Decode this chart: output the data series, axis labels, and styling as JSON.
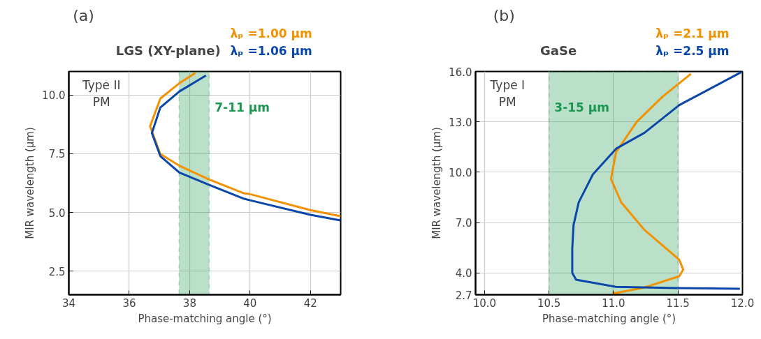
{
  "chart_data": [
    {
      "type": "line",
      "title": "LGS (XY-plane)",
      "xlabel": "Phase-matching angle (°)",
      "ylabel": "MIR wavelength (µm)",
      "xlim": [
        34,
        43
      ],
      "xticks": [
        34,
        36,
        38,
        40,
        42
      ],
      "ylim": [
        1.5,
        11
      ],
      "yticks": [
        2.5,
        {
          "value": 5,
          "label": "5.0"
        },
        7.5,
        {
          "value": 10,
          "label": "10.0"
        }
      ],
      "grid": true,
      "legend": "top right",
      "annotations": [
        "(a)",
        "Type II\nPM"
      ],
      "bands": [
        {
          "axis": "x",
          "from": 37.65,
          "to": 38.65,
          "label": "7-11 µm",
          "color": "#1a9850"
        }
      ],
      "series": [
        {
          "name": "λₚ =1.00 µm",
          "color": "#f39200",
          "x": [
            38.19,
            37.66,
            37.03,
            36.69,
            37.03,
            37.66,
            38.65,
            39.81,
            40.0,
            42.0,
            43.0
          ],
          "values": [
            10.94,
            10.5,
            9.85,
            8.67,
            7.49,
            6.99,
            6.4,
            5.81,
            5.78,
            5.1,
            4.84
          ]
        },
        {
          "name": "λₚ =1.06 µm",
          "color": "#0b47a8",
          "x": [
            38.54,
            37.66,
            37.03,
            36.75,
            37.03,
            37.66,
            38.65,
            39.81,
            40.0,
            42.0,
            43.0
          ],
          "values": [
            10.83,
            10.15,
            9.47,
            8.38,
            7.4,
            6.7,
            6.17,
            5.58,
            5.52,
            4.9,
            4.66
          ]
        }
      ]
    },
    {
      "type": "line",
      "title": "GaSe",
      "xlabel": "Phase-matching angle (°)",
      "ylabel": "MIR wavelength (µm)",
      "xlim": [
        9.93,
        12.0
      ],
      "xticks": [
        {
          "value": 10,
          "label": "10.0"
        },
        10.5,
        {
          "value": 11,
          "label": "11.0"
        },
        11.5,
        {
          "value": 12,
          "label": "12.0"
        }
      ],
      "ylim": [
        2.7,
        16.0
      ],
      "yticks": [
        2.7,
        {
          "value": 4,
          "label": "4.0"
        },
        {
          "value": 7,
          "label": "7.0"
        },
        {
          "value": 10,
          "label": "10.0"
        },
        {
          "value": 13,
          "label": "13.0"
        },
        {
          "value": 16,
          "label": "16.0"
        }
      ],
      "grid": true,
      "legend": "top right",
      "annotations": [
        "(b)",
        "Type I\nPM"
      ],
      "bands": [
        {
          "axis": "x",
          "from": 10.5,
          "to": 11.5,
          "label": "3-15 µm",
          "color": "#1a9850"
        }
      ],
      "series": [
        {
          "name": "λₚ =2.1 µm",
          "color": "#f39200",
          "x": [
            10.99,
            11.24,
            11.51,
            11.54,
            11.51,
            11.24,
            11.06,
            10.98,
            11.02,
            11.18,
            11.38,
            11.6
          ],
          "values": [
            2.76,
            3.13,
            3.8,
            4.2,
            4.78,
            6.56,
            8.2,
            9.6,
            11.2,
            13.0,
            14.5,
            15.86
          ]
        },
        {
          "name": "λₚ =2.5 µm",
          "color": "#0b47a8",
          "x": [
            11.98,
            11.5,
            11.02,
            10.71,
            10.68,
            10.68,
            10.69,
            10.73,
            10.84,
            11.02,
            11.24,
            11.51,
            11.78,
            12.0
          ],
          "values": [
            3.05,
            3.1,
            3.17,
            3.59,
            4.0,
            5.45,
            6.85,
            8.2,
            9.87,
            11.4,
            12.35,
            14.0,
            15.1,
            16.0
          ]
        }
      ]
    }
  ]
}
